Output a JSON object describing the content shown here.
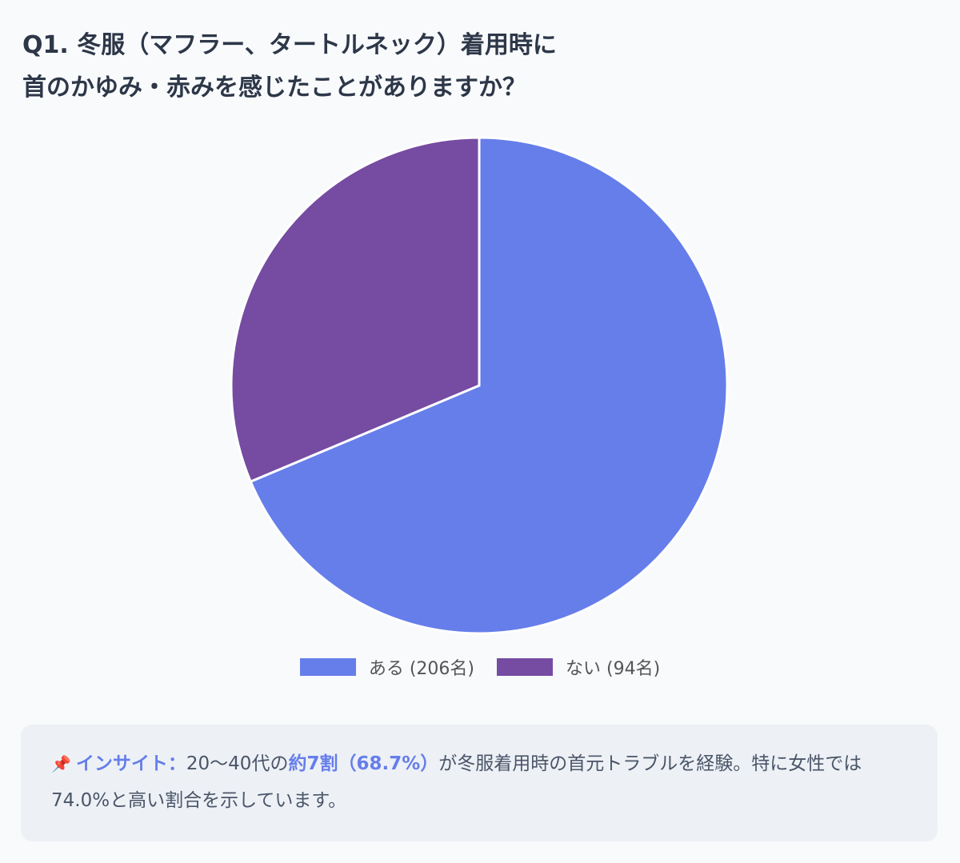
{
  "title": {
    "line1": "Q1. 冬服（マフラー、タートルネック）着用時に",
    "line2": "首のかゆみ・赤みを感じたことがありますか？"
  },
  "chart_data": {
    "type": "pie",
    "title": "Q1. 冬服（マフラー、タートルネック）着用時に首のかゆみ・赤みを感じたことがありますか？",
    "slices": [
      {
        "label": "ある (206名)",
        "value": 206,
        "color": "#667eea"
      },
      {
        "label": "ない (94名)",
        "value": 94,
        "color": "#764ba2"
      }
    ],
    "legend_position": "bottom"
  },
  "insight": {
    "icon": "pushpin-icon",
    "label": "インサイト：",
    "text_before": "20〜40代の",
    "highlight": "約7割（68.7%）",
    "text_after": "が冬服着用時の首元トラブルを経験。特に女性では74.0%と高い割合を示しています。"
  }
}
